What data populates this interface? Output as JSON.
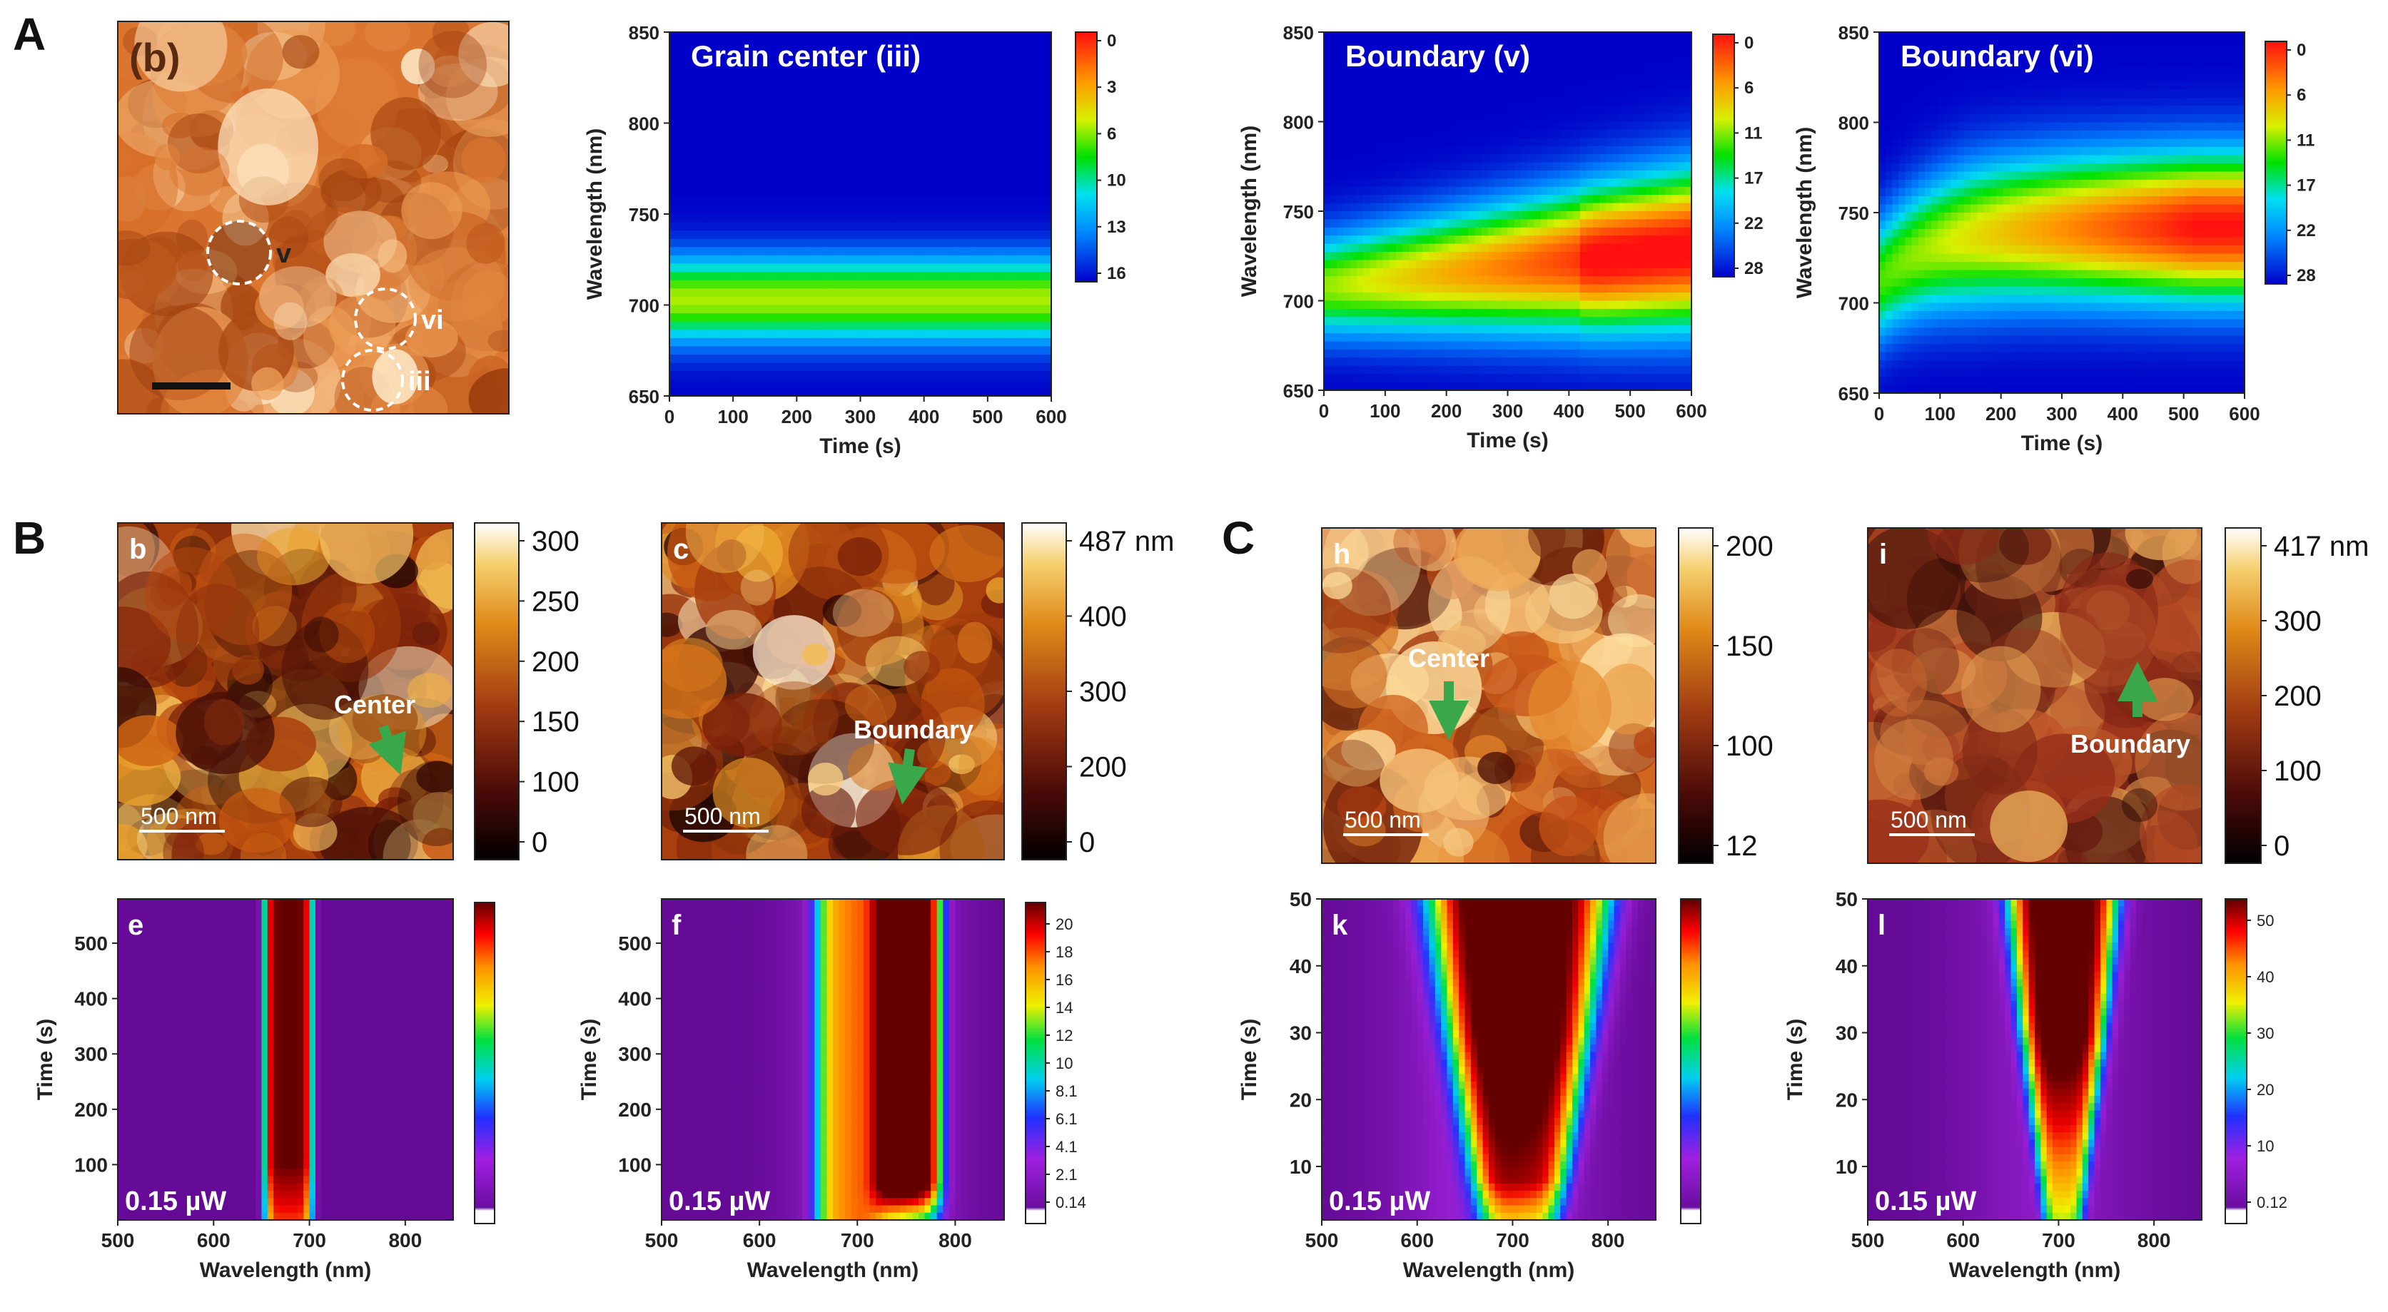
{
  "panel_labels": {
    "A": "A",
    "B": "B",
    "C": "C"
  },
  "afm_images": [
    {
      "id": "A-afm",
      "label": "(b)",
      "palette": "orange",
      "seed": 3,
      "markers": [
        {
          "label": "v",
          "dark": true
        },
        {
          "label": "vi",
          "dark": false
        },
        {
          "label": "iii",
          "dark": false
        }
      ]
    },
    {
      "id": "B-b",
      "label": "b",
      "palette": "afmhot",
      "seed": 11,
      "scalebar": "500 nm",
      "annotation": "Center",
      "colorbar_ticks": [
        "300",
        "250",
        "200",
        "150",
        "100",
        "0"
      ]
    },
    {
      "id": "B-c",
      "label": "c",
      "palette": "afmhot",
      "seed": 23,
      "scalebar": "500 nm",
      "annotation": "Boundary",
      "colorbar_ticks": [
        "487 nm",
        "400",
        "300",
        "200",
        "0"
      ]
    },
    {
      "id": "C-h",
      "label": "h",
      "palette": "afmhot_bright",
      "seed": 37,
      "scalebar": "500 nm",
      "annotation": "Center",
      "colorbar_ticks": [
        "200",
        "150",
        "100",
        "12"
      ]
    },
    {
      "id": "C-i",
      "label": "i",
      "palette": "afmhot_red",
      "seed": 51,
      "scalebar": "500 nm",
      "annotation": "Boundary",
      "colorbar_ticks": [
        "417 nm",
        "300",
        "200",
        "100",
        "0"
      ]
    }
  ],
  "chart_data": [
    {
      "id": "A-iii",
      "type": "heatmap",
      "title": "Grain center (iii)",
      "xlabel": "Time (s)",
      "ylabel": "Wavelength (nm)",
      "xlim": [
        0,
        600
      ],
      "ylim": [
        650,
        850
      ],
      "xticks": [
        0,
        100,
        200,
        300,
        400,
        500,
        600
      ],
      "yticks": [
        650,
        700,
        750,
        800,
        850
      ],
      "colorbar": {
        "colormap": "jet",
        "ticks": [
          0,
          3,
          6,
          10,
          13,
          16
        ]
      }
    },
    {
      "id": "A-v",
      "type": "heatmap",
      "title": "Boundary (v)",
      "xlabel": "Time (s)",
      "ylabel": "Wavelength (nm)",
      "xlim": [
        0,
        600
      ],
      "ylim": [
        650,
        850
      ],
      "xticks": [
        0,
        100,
        200,
        300,
        400,
        500,
        600
      ],
      "yticks": [
        650,
        700,
        750,
        800,
        850
      ],
      "colorbar": {
        "colormap": "jet",
        "ticks": [
          0,
          6,
          11,
          17,
          22,
          28
        ]
      }
    },
    {
      "id": "A-vi",
      "type": "heatmap",
      "title": "Boundary (vi)",
      "xlabel": "Time (s)",
      "ylabel": "Wavelength (nm)",
      "xlim": [
        0,
        600
      ],
      "ylim": [
        650,
        850
      ],
      "xticks": [
        0,
        100,
        200,
        300,
        400,
        500,
        600
      ],
      "yticks": [
        650,
        700,
        750,
        800,
        850
      ],
      "colorbar": {
        "colormap": "jet",
        "ticks": [
          0,
          6,
          11,
          17,
          22,
          28
        ]
      }
    },
    {
      "id": "B-e",
      "type": "heatmap",
      "title": "e",
      "power": "0.15 µW",
      "xlabel": "Wavelength (nm)",
      "ylabel": "Time (s)",
      "xlim": [
        500,
        850
      ],
      "ylim": [
        0,
        580
      ],
      "xticks": [
        500,
        600,
        700,
        800
      ],
      "yticks": [
        100,
        200,
        300,
        400,
        500
      ],
      "colorbar": {
        "colormap": "jet_purple",
        "ticks": []
      }
    },
    {
      "id": "B-f",
      "type": "heatmap",
      "title": "f",
      "power": "0.15 µW",
      "xlabel": "Wavelength (nm)",
      "ylabel": "Time (s)",
      "xlim": [
        500,
        850
      ],
      "ylim": [
        0,
        580
      ],
      "xticks": [
        500,
        600,
        700,
        800
      ],
      "yticks": [
        100,
        200,
        300,
        400,
        500
      ],
      "colorbar": {
        "colormap": "jet_purple",
        "ticks": [
          "20",
          "18",
          "16",
          "14",
          "12",
          "10",
          "8.1",
          "6.1",
          "4.1",
          "2.1",
          "0.14"
        ]
      }
    },
    {
      "id": "C-k",
      "type": "heatmap",
      "title": "k",
      "power": "0.15 µW",
      "xlabel": "Wavelength (nm)",
      "ylabel": "Time (s)",
      "xlim": [
        500,
        850
      ],
      "ylim": [
        2,
        50
      ],
      "xticks": [
        500,
        600,
        700,
        800
      ],
      "yticks": [
        10,
        20,
        30,
        40,
        50
      ],
      "colorbar": {
        "colormap": "jet_purple",
        "ticks": []
      }
    },
    {
      "id": "C-l",
      "type": "heatmap",
      "title": "l",
      "power": "0.15 µW",
      "xlabel": "Wavelength (nm)",
      "ylabel": "Time (s)",
      "xlim": [
        500,
        850
      ],
      "ylim": [
        2,
        50
      ],
      "xticks": [
        500,
        600,
        700,
        800
      ],
      "yticks": [
        10,
        20,
        30,
        40,
        50
      ],
      "colorbar": {
        "colormap": "jet_purple",
        "ticks": [
          "50",
          "40",
          "30",
          "20",
          "10",
          "0.12"
        ]
      }
    }
  ]
}
